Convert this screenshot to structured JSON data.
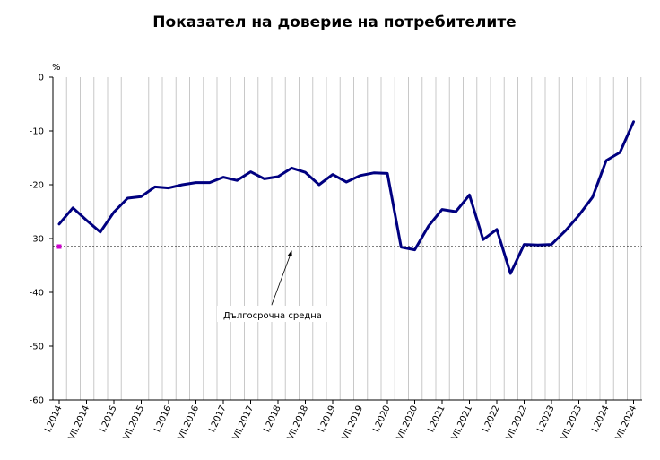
{
  "chart_data": {
    "type": "line",
    "title": "Показател на доверие на потребителите",
    "ylabel": "%",
    "xlabel": "",
    "ylim": [
      -60,
      0
    ],
    "yticks": [
      0,
      -10,
      -20,
      -30,
      -40,
      -50,
      -60
    ],
    "grid": "vertical",
    "x": [
      "I.2014",
      "IV.2014",
      "VII.2014",
      "X.2014",
      "I.2015",
      "IV.2015",
      "VII.2015",
      "X.2015",
      "I.2016",
      "IV.2016",
      "VII.2016",
      "X.2016",
      "I.2017",
      "IV.2017",
      "VII.2017",
      "X.2017",
      "I.2018",
      "IV.2018",
      "VII.2018",
      "X.2018",
      "I.2019",
      "IV.2019",
      "VII.2019",
      "X.2019",
      "I.2020",
      "IV.2020",
      "VII.2020",
      "X.2020",
      "I.2021",
      "IV.2021",
      "VII.2021",
      "X.2021",
      "I.2022",
      "IV.2022",
      "VII.2022",
      "X.2022",
      "I.2023",
      "IV.2023",
      "VII.2023",
      "X.2023",
      "I.2024",
      "IV.2024",
      "VII.2024"
    ],
    "x_tick_labels": [
      "I.2014",
      "VII.2014",
      "I.2015",
      "VII.2015",
      "I.2016",
      "VII.2016",
      "I.2017",
      "VII.2017",
      "I.2018",
      "VII.2018",
      "I.2019",
      "VII.2019",
      "I.2020",
      "VII.2020",
      "I.2021",
      "VII.2021",
      "I.2022",
      "VII.2022",
      "I.2023",
      "VII.2023",
      "I.2024",
      "VII.2024"
    ],
    "series": [
      {
        "color": "#000080",
        "values": [
          -27.3,
          -24.3,
          -26.6,
          -28.8,
          -25.1,
          -22.5,
          -22.2,
          -20.4,
          -20.6,
          -20.0,
          -19.6,
          -19.6,
          -18.6,
          -19.2,
          -17.6,
          -18.9,
          -18.5,
          -16.9,
          -17.7,
          -20.0,
          -18.1,
          -19.5,
          -18.3,
          -17.8,
          -17.9,
          -31.6,
          -32.1,
          -27.7,
          -24.6,
          -25.0,
          -21.9,
          -30.2,
          -28.3,
          -36.5,
          -31.1,
          -31.2,
          -31.1,
          -28.6,
          -25.7,
          -22.3,
          -15.5,
          -14.0,
          -8.3
        ]
      }
    ],
    "reference_line": {
      "value": -31.5,
      "color": "#000000",
      "style": "dashed"
    },
    "marker": {
      "x": "I.2014",
      "value": -31.5,
      "color": "#cc00cc"
    },
    "annotation": {
      "text": "Дългосрочна средна",
      "points_to": "IV.2018"
    }
  }
}
